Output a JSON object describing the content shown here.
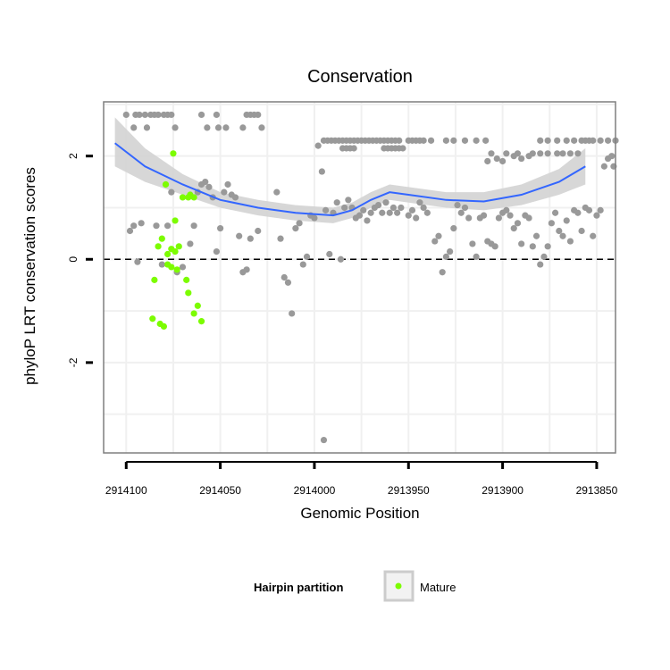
{
  "chart_data": {
    "type": "scatter",
    "title": "Conservation",
    "xlabel": "Genomic Position",
    "ylabel": "phyloP LRT conservation scores",
    "x_reversed": true,
    "xlim": [
      2914112,
      2913840
    ],
    "ylim": [
      -3.75,
      3.05
    ],
    "xticks": [
      2914100,
      2914050,
      2914000,
      2913950,
      2913900,
      2913850
    ],
    "xtick_labels": [
      "2914100",
      "2914050",
      "2914000",
      "2913950",
      "2913900",
      "2913850"
    ],
    "yticks": [
      2,
      0,
      -2
    ],
    "ytick_labels": [
      "2",
      "0",
      "-2"
    ],
    "reference_line": {
      "y": 0,
      "style": "dashed"
    },
    "legend": {
      "title": "Hairpin partition",
      "entries": [
        "Mature"
      ],
      "position": "bottom"
    },
    "colors": {
      "other_points": "#999999",
      "mature_points": "#7cfc00",
      "smooth_line": "#3366ff",
      "confidence_band": "#d3d3d3",
      "grid": "#f0f0f0",
      "panel_border": "#7f7f7f"
    },
    "series": [
      {
        "name": "Other",
        "points": [
          [
            2914100,
            2.8
          ],
          [
            2914095,
            2.8
          ],
          [
            2914093,
            2.8
          ],
          [
            2914090,
            2.8
          ],
          [
            2914087,
            2.8
          ],
          [
            2914085,
            2.8
          ],
          [
            2914083,
            2.8
          ],
          [
            2914080,
            2.8
          ],
          [
            2914078,
            2.8
          ],
          [
            2914076,
            2.8
          ],
          [
            2914060,
            2.8
          ],
          [
            2914052,
            2.8
          ],
          [
            2914036,
            2.8
          ],
          [
            2914034,
            2.8
          ],
          [
            2914032,
            2.8
          ],
          [
            2914030,
            2.8
          ],
          [
            2914096,
            2.55
          ],
          [
            2914089,
            2.55
          ],
          [
            2914074,
            2.55
          ],
          [
            2914057,
            2.55
          ],
          [
            2914051,
            2.55
          ],
          [
            2914047,
            2.55
          ],
          [
            2914038,
            2.55
          ],
          [
            2914028,
            2.55
          ],
          [
            2914098,
            0.55
          ],
          [
            2914096,
            0.65
          ],
          [
            2914094,
            -0.05
          ],
          [
            2914092,
            0.7
          ],
          [
            2914084,
            0.65
          ],
          [
            2914081,
            -0.1
          ],
          [
            2914078,
            0.65
          ],
          [
            2914076,
            1.3
          ],
          [
            2914073,
            -0.25
          ],
          [
            2914070,
            -0.15
          ],
          [
            2914066,
            0.3
          ],
          [
            2914064,
            0.65
          ],
          [
            2914062,
            1.3
          ],
          [
            2914060,
            1.45
          ],
          [
            2914058,
            1.5
          ],
          [
            2914056,
            1.4
          ],
          [
            2914054,
            1.2
          ],
          [
            2914052,
            0.15
          ],
          [
            2914050,
            0.6
          ],
          [
            2914048,
            1.3
          ],
          [
            2914046,
            1.45
          ],
          [
            2914044,
            1.25
          ],
          [
            2914042,
            1.2
          ],
          [
            2914040,
            0.45
          ],
          [
            2914038,
            -0.25
          ],
          [
            2914036,
            -0.2
          ],
          [
            2914034,
            0.4
          ],
          [
            2914030,
            0.55
          ],
          [
            2914020,
            1.3
          ],
          [
            2914018,
            0.4
          ],
          [
            2914016,
            -0.35
          ],
          [
            2914014,
            -0.45
          ],
          [
            2914012,
            -1.05
          ],
          [
            2914010,
            0.6
          ],
          [
            2914008,
            0.7
          ],
          [
            2914006,
            -0.1
          ],
          [
            2914004,
            0.05
          ],
          [
            2914002,
            0.85
          ],
          [
            2914000,
            0.8
          ],
          [
            2913998,
            2.2
          ],
          [
            2913996,
            1.7
          ],
          [
            2913994,
            0.95
          ],
          [
            2913992,
            0.1
          ],
          [
            2913990,
            0.9
          ],
          [
            2913988,
            1.1
          ],
          [
            2913986,
            0
          ],
          [
            2913984,
            1.0
          ],
          [
            2913982,
            1.15
          ],
          [
            2913980,
            1.0
          ],
          [
            2913978,
            0.8
          ],
          [
            2913976,
            0.85
          ],
          [
            2913974,
            0.95
          ],
          [
            2913972,
            0.75
          ],
          [
            2913970,
            0.9
          ],
          [
            2913968,
            1.0
          ],
          [
            2913966,
            1.05
          ],
          [
            2913964,
            0.9
          ],
          [
            2913962,
            1.1
          ],
          [
            2913960,
            0.9
          ],
          [
            2913958,
            1.0
          ],
          [
            2913956,
            0.9
          ],
          [
            2913954,
            1.0
          ],
          [
            2913950,
            0.85
          ],
          [
            2913948,
            0.95
          ],
          [
            2913946,
            0.8
          ],
          [
            2913944,
            1.1
          ],
          [
            2913942,
            1.0
          ],
          [
            2913940,
            0.9
          ],
          [
            2913936,
            0.35
          ],
          [
            2913934,
            0.45
          ],
          [
            2913932,
            -0.25
          ],
          [
            2913930,
            0.05
          ],
          [
            2913928,
            0.15
          ],
          [
            2913926,
            0.6
          ],
          [
            2913924,
            1.05
          ],
          [
            2913922,
            0.9
          ],
          [
            2913920,
            1.0
          ],
          [
            2913918,
            0.8
          ],
          [
            2913916,
            0.3
          ],
          [
            2913914,
            0.05
          ],
          [
            2913912,
            0.8
          ],
          [
            2913910,
            0.85
          ],
          [
            2913908,
            0.35
          ],
          [
            2913906,
            0.3
          ],
          [
            2913904,
            0.25
          ],
          [
            2913902,
            0.8
          ],
          [
            2913900,
            0.9
          ],
          [
            2913898,
            0.95
          ],
          [
            2913896,
            0.85
          ],
          [
            2913894,
            0.6
          ],
          [
            2913892,
            0.7
          ],
          [
            2913890,
            0.3
          ],
          [
            2913888,
            0.85
          ],
          [
            2913886,
            0.8
          ],
          [
            2913884,
            0.25
          ],
          [
            2913882,
            0.45
          ],
          [
            2913880,
            -0.1
          ],
          [
            2913878,
            0.05
          ],
          [
            2913876,
            0.25
          ],
          [
            2913874,
            0.7
          ],
          [
            2913872,
            0.9
          ],
          [
            2913870,
            0.55
          ],
          [
            2913868,
            0.45
          ],
          [
            2913866,
            0.75
          ],
          [
            2913864,
            0.35
          ],
          [
            2913862,
            0.95
          ],
          [
            2913860,
            0.9
          ],
          [
            2913858,
            0.55
          ],
          [
            2913856,
            1.0
          ],
          [
            2913854,
            0.95
          ],
          [
            2913852,
            0.45
          ],
          [
            2913850,
            0.85
          ],
          [
            2913848,
            0.95
          ],
          [
            2913846,
            1.8
          ],
          [
            2913844,
            1.95
          ],
          [
            2913842,
            2.0
          ],
          [
            2913841,
            1.8
          ],
          [
            2913995,
            2.3
          ],
          [
            2913993,
            2.3
          ],
          [
            2913991,
            2.3
          ],
          [
            2913989,
            2.3
          ],
          [
            2913987,
            2.3
          ],
          [
            2913985,
            2.3
          ],
          [
            2913983,
            2.3
          ],
          [
            2913981,
            2.3
          ],
          [
            2913979,
            2.3
          ],
          [
            2913977,
            2.3
          ],
          [
            2913975,
            2.3
          ],
          [
            2913973,
            2.3
          ],
          [
            2913971,
            2.3
          ],
          [
            2913969,
            2.3
          ],
          [
            2913967,
            2.3
          ],
          [
            2913965,
            2.3
          ],
          [
            2913963,
            2.3
          ],
          [
            2913961,
            2.3
          ],
          [
            2913959,
            2.3
          ],
          [
            2913957,
            2.3
          ],
          [
            2913955,
            2.3
          ],
          [
            2913950,
            2.3
          ],
          [
            2913948,
            2.3
          ],
          [
            2913946,
            2.3
          ],
          [
            2913944,
            2.3
          ],
          [
            2913942,
            2.3
          ],
          [
            2913938,
            2.3
          ],
          [
            2913930,
            2.3
          ],
          [
            2913926,
            2.3
          ],
          [
            2913920,
            2.3
          ],
          [
            2913914,
            2.3
          ],
          [
            2913909,
            2.3
          ],
          [
            2913880,
            2.3
          ],
          [
            2913876,
            2.3
          ],
          [
            2913871,
            2.3
          ],
          [
            2913866,
            2.3
          ],
          [
            2913862,
            2.3
          ],
          [
            2913858,
            2.3
          ],
          [
            2913856,
            2.3
          ],
          [
            2913854,
            2.3
          ],
          [
            2913852,
            2.3
          ],
          [
            2913848,
            2.3
          ],
          [
            2913844,
            2.3
          ],
          [
            2913840,
            2.3
          ],
          [
            2913985,
            2.15
          ],
          [
            2913983,
            2.15
          ],
          [
            2913981,
            2.15
          ],
          [
            2913979,
            2.15
          ],
          [
            2913963,
            2.15
          ],
          [
            2913961,
            2.15
          ],
          [
            2913959,
            2.15
          ],
          [
            2913957,
            2.15
          ],
          [
            2913955,
            2.15
          ],
          [
            2913953,
            2.15
          ],
          [
            2913906,
            2.05
          ],
          [
            2913892,
            2.05
          ],
          [
            2913884,
            2.05
          ],
          [
            2913880,
            2.05
          ],
          [
            2913876,
            2.05
          ],
          [
            2913871,
            2.05
          ],
          [
            2913868,
            2.05
          ],
          [
            2913864,
            2.05
          ],
          [
            2913860,
            2.05
          ],
          [
            2913908,
            1.9
          ],
          [
            2913903,
            1.95
          ],
          [
            2913898,
            2.05
          ],
          [
            2913894,
            2.0
          ],
          [
            2913890,
            1.95
          ],
          [
            2913886,
            2.0
          ],
          [
            2913900,
            1.9
          ],
          [
            2913995,
            -3.5
          ]
        ]
      },
      {
        "name": "Mature",
        "points": [
          [
            2914075,
            2.05
          ],
          [
            2914079,
            1.45
          ],
          [
            2914074,
            0.75
          ],
          [
            2914070,
            1.2
          ],
          [
            2914067,
            1.2
          ],
          [
            2914066,
            1.25
          ],
          [
            2914064,
            1.2
          ],
          [
            2914081,
            0.4
          ],
          [
            2914078,
            0.1
          ],
          [
            2914076,
            0.2
          ],
          [
            2914074,
            0.15
          ],
          [
            2914072,
            0.25
          ],
          [
            2914083,
            0.25
          ],
          [
            2914085,
            -0.4
          ],
          [
            2914076,
            -0.15
          ],
          [
            2914073,
            -0.2
          ],
          [
            2914068,
            -0.4
          ],
          [
            2914067,
            -0.65
          ],
          [
            2914064,
            -1.05
          ],
          [
            2914062,
            -0.9
          ],
          [
            2914060,
            -1.2
          ],
          [
            2914086,
            -1.15
          ],
          [
            2914082,
            -1.25
          ],
          [
            2914080,
            -1.3
          ],
          [
            2914078,
            -0.1
          ]
        ]
      }
    ],
    "smooth": {
      "x": [
        2914106,
        2914090,
        2914070,
        2914050,
        2914030,
        2914010,
        2913990,
        2913980,
        2913970,
        2913960,
        2913950,
        2913930,
        2913910,
        2913890,
        2913870,
        2913856
      ],
      "y": [
        2.25,
        1.8,
        1.45,
        1.15,
        1.0,
        0.9,
        0.85,
        0.95,
        1.15,
        1.3,
        1.25,
        1.15,
        1.12,
        1.25,
        1.5,
        1.8
      ],
      "lower": [
        1.8,
        1.5,
        1.25,
        1.0,
        0.85,
        0.75,
        0.7,
        0.8,
        1.0,
        1.15,
        1.1,
        1.0,
        0.95,
        1.05,
        1.25,
        1.45
      ],
      "upper": [
        2.75,
        2.15,
        1.65,
        1.3,
        1.15,
        1.05,
        1.0,
        1.1,
        1.3,
        1.45,
        1.4,
        1.3,
        1.3,
        1.45,
        1.75,
        2.15
      ]
    }
  }
}
